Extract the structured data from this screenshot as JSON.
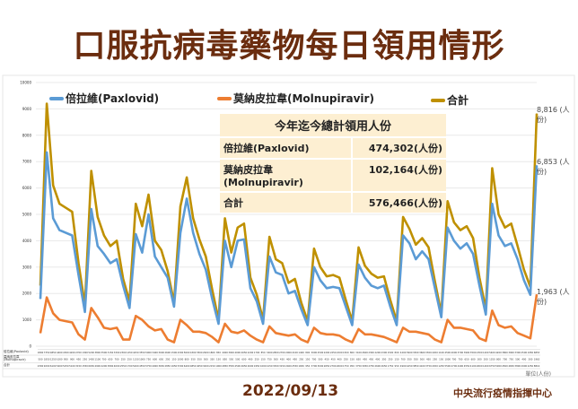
{
  "title": "口服抗病毒藥物每日領用情形",
  "date": "2022/09/13",
  "organization": "中央流行疫情指揮中心",
  "unit_label": "單位(人份)",
  "totals_table": {
    "header": "今年迄今總計領用人份",
    "rows": [
      {
        "label": "倍拉維(Paxlovid)",
        "value": "474,302(人份)"
      },
      {
        "label": "莫納皮拉韋(Molnupiravir)",
        "value": "102,164(人份)"
      },
      {
        "label": "合計",
        "value": "576,466(人份)"
      }
    ]
  },
  "end_labels": {
    "total": "8,816 (人份)",
    "paxlovid": "6,853 (人份)",
    "molnupiravir": "1,963 (人份)"
  },
  "colors": {
    "paxlovid": "#5b9bd5",
    "molnupiravir": "#ed7d31",
    "total": "#bf9000",
    "title": "#6b2d0f"
  },
  "chart_data": {
    "type": "line",
    "title": "口服抗病毒藥物每日領用情形",
    "xlabel": "",
    "ylabel": "",
    "ylim": [
      0,
      10000
    ],
    "yticks": [
      0,
      1000,
      2000,
      3000,
      4000,
      5000,
      6000,
      7000,
      8000,
      9000,
      10000
    ],
    "grid": true,
    "legend_position": "top",
    "series": [
      {
        "key": "paxlovid",
        "name": "倍拉維(Paxlovid)",
        "values": [
          1800,
          7350,
          4850,
          4400,
          4300,
          4200,
          2700,
          1300,
          5200,
          3800,
          3500,
          3150,
          3300,
          2300,
          1450,
          4250,
          3550,
          5000,
          3400,
          3000,
          2600,
          1500,
          4300,
          5600,
          4300,
          3500,
          2900,
          1800,
          850,
          4000,
          3000,
          4000,
          4050,
          2200,
          1700,
          850,
          3400,
          2800,
          2700,
          2000,
          2100,
          1400,
          800,
          3000,
          2500,
          2200,
          2250,
          2200,
          1500,
          800,
          3100,
          2600,
          2300,
          2200,
          2300,
          1500,
          800,
          4200,
          3900,
          3300,
          3600,
          3300,
          2200,
          1100,
          4500,
          4000,
          3700,
          3900,
          3500,
          2300,
          1200,
          5400,
          4200,
          3800,
          3900,
          3300,
          2500,
          1950,
          6853
        ]
      },
      {
        "key": "molnupiravir",
        "name": "莫納皮拉韋(Molnupiravir)",
        "values": [
          500,
          1850,
          1250,
          1000,
          950,
          900,
          450,
          250,
          1450,
          1100,
          700,
          650,
          700,
          250,
          250,
          1150,
          1000,
          750,
          600,
          650,
          250,
          150,
          1000,
          800,
          550,
          550,
          500,
          350,
          150,
          850,
          550,
          500,
          600,
          400,
          250,
          150,
          750,
          500,
          450,
          400,
          450,
          250,
          150,
          700,
          500,
          450,
          450,
          400,
          250,
          150,
          650,
          450,
          450,
          400,
          350,
          250,
          150,
          700,
          550,
          550,
          500,
          450,
          250,
          150,
          1000,
          700,
          700,
          650,
          600,
          300,
          200,
          1350,
          800,
          700,
          750,
          500,
          400,
          300,
          1963
        ]
      },
      {
        "key": "total",
        "name": "合計",
        "values": [
          2300,
          9200,
          6100,
          5400,
          5250,
          5100,
          3150,
          1550,
          6650,
          4900,
          4200,
          3800,
          4000,
          2550,
          1700,
          5400,
          4550,
          5750,
          4000,
          3650,
          2850,
          1650,
          5300,
          6400,
          4850,
          4050,
          3400,
          2150,
          1000,
          4850,
          3550,
          4500,
          4650,
          2600,
          1950,
          1000,
          4150,
          3300,
          3150,
          2400,
          2550,
          1650,
          950,
          3700,
          3000,
          2650,
          2700,
          2600,
          1750,
          950,
          3750,
          3050,
          2750,
          2600,
          2650,
          1750,
          950,
          4900,
          4450,
          3850,
          4100,
          3750,
          2450,
          1250,
          5500,
          4700,
          4400,
          4550,
          4100,
          2600,
          1400,
          6750,
          5000,
          4500,
          4650,
          3800,
          2900,
          2250,
          8816
        ]
      }
    ]
  }
}
